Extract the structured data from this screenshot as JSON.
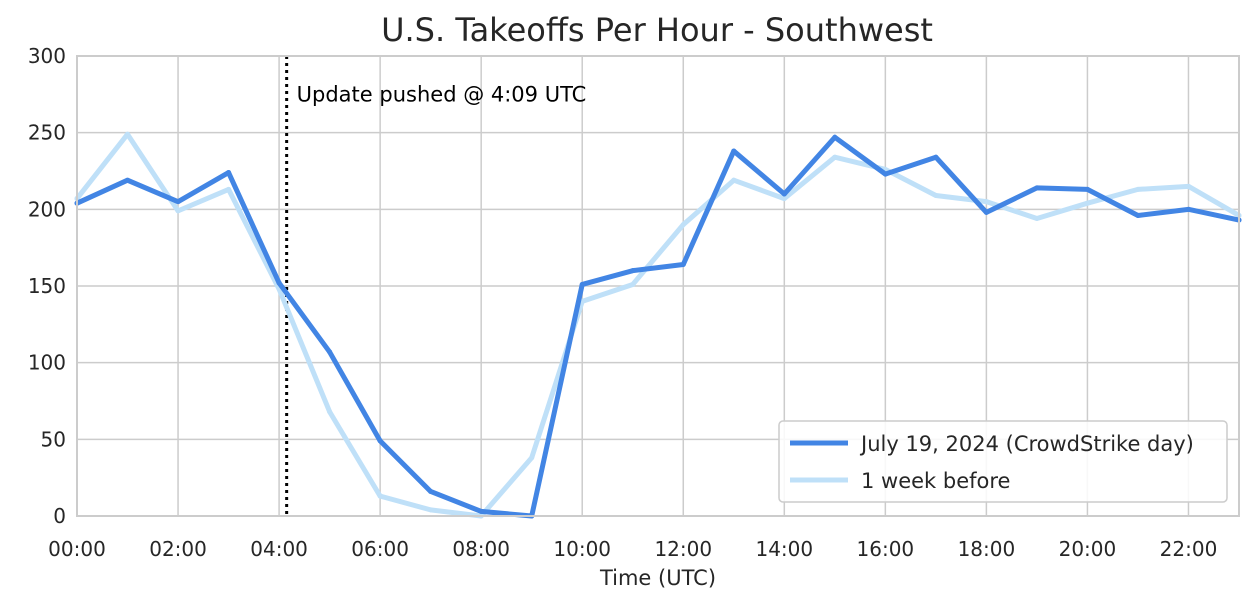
{
  "chart_data": {
    "type": "line",
    "title": "U.S. Takeoffs Per Hour - Southwest",
    "xlabel": "Time (UTC)",
    "ylabel": "",
    "x": [
      0,
      1,
      2,
      3,
      4,
      5,
      6,
      7,
      8,
      9,
      10,
      11,
      12,
      13,
      14,
      15,
      16,
      17,
      18,
      19,
      20,
      21,
      22,
      23
    ],
    "xlim": [
      0,
      23
    ],
    "ylim": [
      0,
      300
    ],
    "xticks": [
      0,
      2,
      4,
      6,
      8,
      10,
      12,
      14,
      16,
      18,
      20,
      22
    ],
    "xtick_labels": [
      "00:00",
      "02:00",
      "04:00",
      "06:00",
      "08:00",
      "10:00",
      "12:00",
      "14:00",
      "16:00",
      "18:00",
      "20:00",
      "22:00"
    ],
    "yticks": [
      0,
      50,
      100,
      150,
      200,
      250,
      300
    ],
    "ytick_labels": [
      "0",
      "50",
      "100",
      "150",
      "200",
      "250",
      "300"
    ],
    "grid": true,
    "legend_position": "bottom-right",
    "series": [
      {
        "name": "July 19, 2024 (CrowdStrike day)",
        "color": "#4285e4",
        "values": [
          204,
          219,
          205,
          224,
          152,
          107,
          49,
          16,
          3,
          0,
          151,
          160,
          164,
          238,
          210,
          247,
          223,
          234,
          198,
          214,
          213,
          196,
          200,
          193
        ]
      },
      {
        "name": "1 week before",
        "color": "#bfe0f8",
        "values": [
          207,
          249,
          199,
          213,
          148,
          68,
          13,
          4,
          0,
          38,
          140,
          151,
          190,
          219,
          207,
          234,
          226,
          209,
          205,
          194,
          204,
          213,
          215,
          196
        ]
      }
    ],
    "annotations": [
      {
        "type": "vline",
        "x": 4.15,
        "style": "dotted",
        "color": "#000000",
        "text": "Update pushed @ 4:09 UTC",
        "text_y": 265
      }
    ]
  }
}
